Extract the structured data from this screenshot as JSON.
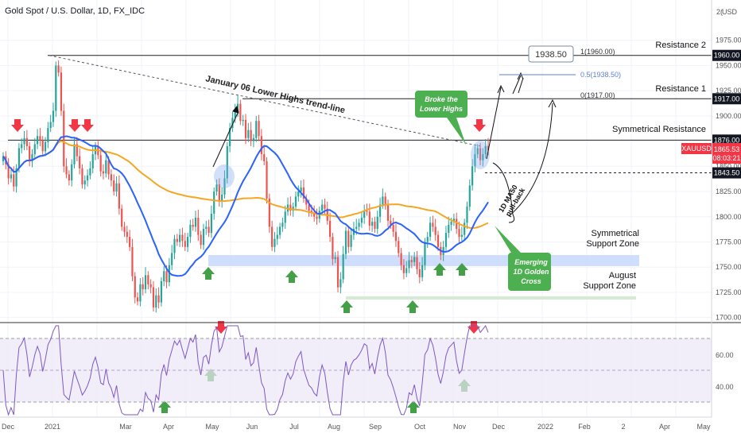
{
  "header": {
    "title": "Gold Spot / U.S. Dollar, 1D, FX_IDC"
  },
  "colors": {
    "up": "#26a69a",
    "down": "#ef5350",
    "ma50": "#2962ff",
    "ma200": "#f5a623",
    "rsi": "#7e57c2",
    "support": "#c5d8fb",
    "august": "#d4ead4",
    "green_label": "#4caf50",
    "red_arrow": "#f23645",
    "green_arrow": "#43a047",
    "price_tag": "#f23645"
  },
  "chart_data": {
    "type": "candlestick",
    "symbol": "XAUUSD",
    "last_price": "1865.53",
    "countdown": "08:03:21",
    "ylim": [
      1695,
      2000
    ],
    "price_axis_ticks": [
      "1975.00",
      "1950.00",
      "1925.00",
      "1900.00",
      "1875.00",
      "1850.00",
      "1825.00",
      "1800.00",
      "1775.00",
      "1750.00",
      "1725.00",
      "1700.00"
    ],
    "top_axis_label": "2(",
    "axis_unit": "USD",
    "level_tags": [
      "1960.00",
      "1917.00",
      "1876.00",
      "1843.50"
    ],
    "x_ticks": [
      "Dec",
      "2021",
      "Mar",
      "Apr",
      "May",
      "Jun",
      "Jul",
      "Aug",
      "Sep",
      "Oct",
      "Nov",
      "Dec",
      "2022",
      "Feb",
      "2",
      "Apr",
      "May"
    ],
    "levels": [
      {
        "label": "Resistance 2",
        "value": 1960.0
      },
      {
        "label": "Resistance 1",
        "value": 1917.0
      },
      {
        "label": "Symmetrical Resistance",
        "value": 1876.0
      },
      {
        "label": "",
        "value": 1843.5
      }
    ],
    "fib": [
      {
        "label": "1(1960.00)",
        "value": 1960.0
      },
      {
        "label": "0.5(1938.50)",
        "value": 1938.5
      },
      {
        "label": "0(1917.00)",
        "value": 1917.0
      }
    ],
    "target_box": "1938.50",
    "zones": [
      {
        "label": "Symmetrical Support Zone",
        "line1": "Symmetrical",
        "line2": "Support Zone",
        "from": 1751,
        "to": 1762
      },
      {
        "label": "August Support Zone",
        "line1": "August",
        "line2": "Support Zone",
        "from": 1718,
        "to": 1721
      }
    ],
    "annotations": {
      "trendline": "January 06 Lower Highs trend-line",
      "broke": [
        "Broke the",
        "Lower Highs"
      ],
      "pullback": [
        "1D MA50",
        "pull-back"
      ],
      "golden_cross": [
        "Emerging",
        "1D Golden",
        "Cross"
      ]
    },
    "rsi_ticks": [
      "60.00",
      "40.00"
    ],
    "series": [
      {
        "kind": "candles",
        "closes": [
          1860,
          1852,
          1838,
          1842,
          1830,
          1848,
          1868,
          1872,
          1878,
          1870,
          1855,
          1862,
          1872,
          1880,
          1876,
          1865,
          1874,
          1888,
          1894,
          1905,
          1950,
          1943,
          1905,
          1850,
          1842,
          1836,
          1852,
          1872,
          1860,
          1848,
          1832,
          1836,
          1841,
          1848,
          1862,
          1870,
          1861,
          1845,
          1843,
          1856,
          1842,
          1836,
          1825,
          1833,
          1808,
          1790,
          1785,
          1780,
          1770,
          1741,
          1720,
          1716,
          1733,
          1728,
          1742,
          1733,
          1730,
          1710,
          1722,
          1715,
          1736,
          1746,
          1735,
          1752,
          1764,
          1778,
          1775,
          1782,
          1776,
          1770,
          1780,
          1792,
          1790,
          1799,
          1782,
          1772,
          1788,
          1790,
          1784,
          1803,
          1825,
          1832,
          1815,
          1822,
          1838,
          1870,
          1888,
          1898,
          1905,
          1912,
          1895,
          1896,
          1878,
          1886,
          1875,
          1878,
          1895,
          1880,
          1862,
          1855,
          1818,
          1790,
          1770,
          1778,
          1782,
          1790,
          1794,
          1805,
          1812,
          1806,
          1810,
          1820,
          1825,
          1829,
          1818,
          1812,
          1806,
          1804,
          1800,
          1798,
          1806,
          1812,
          1808,
          1796,
          1780,
          1758,
          1760,
          1730,
          1738,
          1763,
          1786,
          1770,
          1782,
          1788,
          1790,
          1794,
          1799,
          1806,
          1805,
          1791,
          1795,
          1788,
          1800,
          1812,
          1820,
          1812,
          1796,
          1792,
          1785,
          1776,
          1764,
          1752,
          1744,
          1749,
          1757,
          1755,
          1760,
          1748,
          1740,
          1752,
          1775,
          1780,
          1794,
          1790,
          1782,
          1770,
          1762,
          1770,
          1784,
          1792,
          1795,
          1798,
          1788,
          1780,
          1782,
          1794,
          1810,
          1831,
          1850,
          1862,
          1868,
          1856,
          1862,
          1870,
          1866
        ]
      },
      {
        "name": "1D MA50"
      },
      {
        "name": "1D MA200"
      },
      {
        "name": "RSI"
      }
    ]
  }
}
